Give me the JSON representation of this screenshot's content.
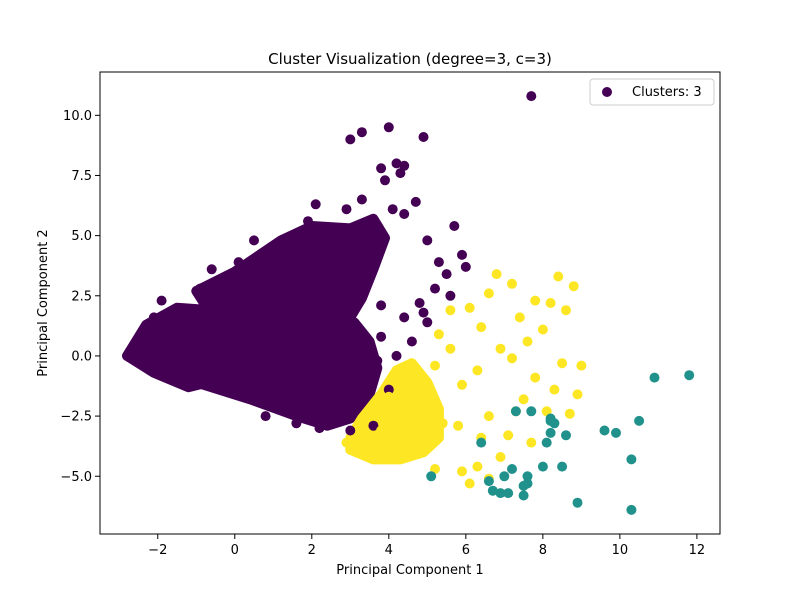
{
  "chart_data": {
    "type": "scatter",
    "title": "Cluster Visualization (degree=3, c=3)",
    "xlabel": "Principal Component 1",
    "ylabel": "Principal Component 2",
    "xlim": [
      -3.5,
      12.6
    ],
    "ylim": [
      -7.4,
      11.8
    ],
    "x_ticks": [
      -2,
      0,
      2,
      4,
      6,
      8,
      10,
      12
    ],
    "x_tick_labels": [
      "−2",
      "0",
      "2",
      "4",
      "6",
      "8",
      "10",
      "12"
    ],
    "y_ticks": [
      -5.0,
      -2.5,
      0.0,
      2.5,
      5.0,
      7.5,
      10.0
    ],
    "y_tick_labels": [
      "−5.0",
      "−2.5",
      "0.0",
      "2.5",
      "5.0",
      "7.5",
      "10.0"
    ],
    "grid": false,
    "legend": {
      "position": "top-right",
      "entries": [
        {
          "label": "Clusters: 3",
          "color": "#440154"
        }
      ]
    },
    "series": [
      {
        "color": "#440154",
        "points": [
          [
            7.7,
            10.8
          ],
          [
            3.3,
            9.3
          ],
          [
            4.0,
            9.5
          ],
          [
            3.0,
            9.0
          ],
          [
            4.9,
            9.1
          ],
          [
            4.2,
            8.0
          ],
          [
            3.8,
            7.8
          ],
          [
            4.4,
            7.9
          ],
          [
            3.9,
            7.3
          ],
          [
            4.3,
            7.6
          ],
          [
            3.3,
            6.5
          ],
          [
            2.9,
            6.1
          ],
          [
            4.1,
            6.1
          ],
          [
            4.7,
            6.4
          ],
          [
            4.4,
            5.9
          ],
          [
            5.7,
            5.4
          ],
          [
            5.0,
            4.8
          ],
          [
            5.9,
            4.2
          ],
          [
            6.0,
            3.7
          ],
          [
            5.5,
            3.4
          ],
          [
            5.2,
            2.8
          ],
          [
            4.8,
            2.2
          ],
          [
            5.0,
            1.4
          ],
          [
            4.6,
            0.6
          ],
          [
            4.2,
            0.0
          ],
          [
            2.1,
            6.3
          ],
          [
            1.9,
            5.6
          ],
          [
            0.5,
            4.8
          ],
          [
            -0.9,
            2.8
          ],
          [
            -1.9,
            2.3
          ],
          [
            -2.1,
            1.6
          ],
          [
            2.9,
            3.2
          ],
          [
            3.4,
            4.9
          ],
          [
            3.8,
            2.1
          ],
          [
            3.1,
            1.0
          ],
          [
            2.6,
            -0.3
          ],
          [
            3.1,
            -1.8
          ],
          [
            3.6,
            -2.9
          ],
          [
            3.0,
            -3.1
          ],
          [
            2.2,
            -3.0
          ],
          [
            1.6,
            -2.8
          ],
          [
            0.8,
            -2.5
          ],
          [
            4.0,
            -1.4
          ],
          [
            3.8,
            0.8
          ],
          [
            4.4,
            1.6
          ],
          [
            3.7,
            -0.2
          ],
          [
            3.2,
            0.4
          ],
          [
            2.7,
            2.4
          ],
          [
            2.4,
            4.5
          ],
          [
            1.2,
            3.4
          ],
          [
            1.5,
            4.4
          ],
          [
            0.9,
            4.0
          ],
          [
            -0.6,
            3.6
          ],
          [
            0.1,
            3.9
          ],
          [
            5.3,
            3.9
          ],
          [
            5.6,
            2.5
          ],
          [
            4.9,
            1.8
          ]
        ]
      },
      {
        "color": "#fde725",
        "points": [
          [
            6.8,
            3.4
          ],
          [
            7.2,
            3.0
          ],
          [
            6.6,
            2.6
          ],
          [
            8.4,
            3.3
          ],
          [
            8.8,
            2.9
          ],
          [
            8.2,
            2.2
          ],
          [
            7.8,
            2.3
          ],
          [
            8.6,
            1.9
          ],
          [
            6.1,
            2.0
          ],
          [
            5.6,
            1.9
          ],
          [
            7.4,
            1.6
          ],
          [
            8.0,
            1.1
          ],
          [
            6.4,
            1.2
          ],
          [
            5.3,
            0.9
          ],
          [
            6.9,
            0.3
          ],
          [
            7.6,
            0.6
          ],
          [
            7.2,
            -0.1
          ],
          [
            8.5,
            -0.3
          ],
          [
            9.0,
            -0.4
          ],
          [
            7.8,
            -0.9
          ],
          [
            8.3,
            -1.4
          ],
          [
            8.9,
            -1.6
          ],
          [
            6.3,
            -0.6
          ],
          [
            5.9,
            -1.2
          ],
          [
            7.5,
            -1.8
          ],
          [
            8.1,
            -2.3
          ],
          [
            8.7,
            -2.4
          ],
          [
            7.3,
            -2.3
          ],
          [
            6.6,
            -2.5
          ],
          [
            7.1,
            -3.3
          ],
          [
            6.4,
            -3.4
          ],
          [
            5.8,
            -2.9
          ],
          [
            7.7,
            -3.6
          ],
          [
            6.9,
            -4.2
          ],
          [
            6.3,
            -4.6
          ],
          [
            6.6,
            -5.1
          ],
          [
            5.9,
            -4.8
          ],
          [
            6.1,
            -5.3
          ],
          [
            5.2,
            -4.7
          ],
          [
            4.6,
            -3.9
          ],
          [
            4.0,
            -4.2
          ],
          [
            3.5,
            -4.1
          ],
          [
            3.1,
            -3.9
          ],
          [
            2.9,
            -3.6
          ],
          [
            3.8,
            -3.1
          ],
          [
            4.4,
            -2.5
          ],
          [
            4.0,
            -1.7
          ],
          [
            4.7,
            -1.0
          ],
          [
            5.2,
            -0.4
          ],
          [
            5.6,
            0.3
          ],
          [
            4.9,
            -1.9
          ],
          [
            5.4,
            -2.8
          ],
          [
            4.8,
            -3.2
          ]
        ]
      },
      {
        "color": "#21918c",
        "points": [
          [
            11.8,
            -0.8
          ],
          [
            10.9,
            -0.9
          ],
          [
            10.5,
            -2.7
          ],
          [
            9.6,
            -3.1
          ],
          [
            9.9,
            -3.2
          ],
          [
            10.3,
            -4.3
          ],
          [
            10.3,
            -6.4
          ],
          [
            8.9,
            -6.1
          ],
          [
            8.6,
            -3.3
          ],
          [
            8.2,
            -3.2
          ],
          [
            8.1,
            -3.6
          ],
          [
            8.5,
            -4.6
          ],
          [
            8.0,
            -4.6
          ],
          [
            7.6,
            -5.0
          ],
          [
            7.6,
            -5.3
          ],
          [
            7.2,
            -4.7
          ],
          [
            7.0,
            -5.0
          ],
          [
            6.6,
            -5.2
          ],
          [
            6.9,
            -5.7
          ],
          [
            7.1,
            -5.7
          ],
          [
            7.5,
            -5.8
          ],
          [
            6.7,
            -5.6
          ],
          [
            7.3,
            -2.3
          ],
          [
            7.7,
            -2.3
          ],
          [
            8.2,
            -2.6
          ],
          [
            8.3,
            -2.8
          ],
          [
            5.1,
            -5.0
          ],
          [
            6.4,
            -3.6
          ],
          [
            7.5,
            -5.4
          ],
          [
            8.2,
            -2.7
          ]
        ]
      }
    ],
    "dense_regions": [
      {
        "color": "#440154",
        "polygon": [
          [
            -2.8,
            0.0
          ],
          [
            -2.3,
            1.3
          ],
          [
            -1.5,
            2.0
          ],
          [
            -0.6,
            1.9
          ],
          [
            0.4,
            1.2
          ],
          [
            1.4,
            0.4
          ],
          [
            1.7,
            -0.2
          ],
          [
            0.6,
            -0.6
          ],
          [
            -0.2,
            -0.9
          ],
          [
            -1.2,
            -1.3
          ],
          [
            -2.1,
            -0.7
          ]
        ]
      },
      {
        "color": "#440154",
        "polygon": [
          [
            -1.0,
            2.7
          ],
          [
            0.0,
            3.5
          ],
          [
            1.2,
            4.8
          ],
          [
            2.0,
            5.4
          ],
          [
            3.0,
            5.3
          ],
          [
            3.6,
            5.7
          ],
          [
            3.9,
            4.9
          ],
          [
            3.6,
            3.6
          ],
          [
            3.3,
            2.4
          ],
          [
            3.0,
            1.6
          ],
          [
            2.4,
            0.8
          ],
          [
            1.8,
            0.0
          ],
          [
            1.0,
            0.6
          ],
          [
            0.0,
            1.5
          ],
          [
            -0.8,
            2.2
          ]
        ]
      },
      {
        "color": "#440154",
        "polygon": [
          [
            -1.9,
            -0.5
          ],
          [
            -0.8,
            -1.2
          ],
          [
            0.4,
            -1.8
          ],
          [
            1.6,
            -2.5
          ],
          [
            2.4,
            -2.9
          ],
          [
            3.0,
            -2.6
          ],
          [
            3.5,
            -1.6
          ],
          [
            3.7,
            -0.5
          ],
          [
            3.5,
            0.6
          ],
          [
            3.1,
            1.4
          ],
          [
            2.4,
            0.6
          ],
          [
            1.6,
            -0.3
          ],
          [
            0.6,
            -0.4
          ],
          [
            -0.4,
            -0.2
          ],
          [
            -1.3,
            0.1
          ]
        ]
      },
      {
        "color": "#fde725",
        "polygon": [
          [
            3.0,
            -3.9
          ],
          [
            3.6,
            -4.3
          ],
          [
            4.3,
            -4.3
          ],
          [
            4.9,
            -4.0
          ],
          [
            5.3,
            -3.4
          ],
          [
            5.3,
            -2.2
          ],
          [
            5.0,
            -1.1
          ],
          [
            4.6,
            -0.3
          ],
          [
            4.2,
            -0.6
          ],
          [
            3.8,
            -1.6
          ],
          [
            3.3,
            -2.6
          ],
          [
            3.0,
            -3.4
          ]
        ]
      }
    ]
  }
}
